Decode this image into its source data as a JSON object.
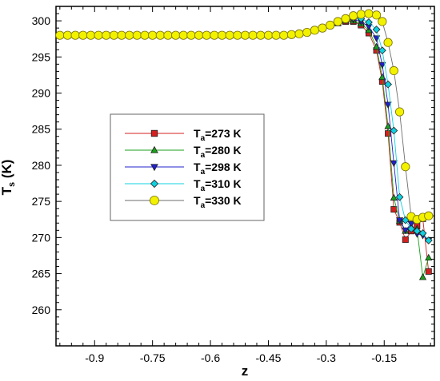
{
  "chart_data": {
    "type": "line",
    "xlabel": "z",
    "ylabel": "T",
    "ylabel_sub": "s",
    "ylabel_unit": "(K)",
    "xlim": [
      -1.0,
      -0.02
    ],
    "ylim": [
      255,
      302
    ],
    "x_ticks": [
      -0.9,
      -0.75,
      -0.6,
      -0.45,
      -0.3,
      -0.15
    ],
    "x_tick_labels": [
      "-0.9",
      "-0.75",
      "-0.6",
      "-0.45",
      "-0.3",
      "-0.15"
    ],
    "y_ticks": [
      260,
      265,
      270,
      275,
      280,
      285,
      290,
      295,
      300
    ],
    "y_tick_labels": [
      "260",
      "265",
      "270",
      "275",
      "280",
      "285",
      "290",
      "295",
      "300"
    ],
    "grid": false,
    "legend_position": "center-left",
    "series": [
      {
        "name_main": "T",
        "name_sub": "a",
        "name_rest": "=273 K",
        "color": "#d42020",
        "marker": "square",
        "x": [
          -0.99,
          -0.97,
          -0.95,
          -0.93,
          -0.91,
          -0.89,
          -0.87,
          -0.85,
          -0.83,
          -0.81,
          -0.79,
          -0.77,
          -0.75,
          -0.73,
          -0.71,
          -0.69,
          -0.67,
          -0.65,
          -0.63,
          -0.61,
          -0.59,
          -0.57,
          -0.55,
          -0.53,
          -0.51,
          -0.49,
          -0.47,
          -0.45,
          -0.43,
          -0.41,
          -0.39,
          -0.37,
          -0.35,
          -0.33,
          -0.31,
          -0.29,
          -0.27,
          -0.25,
          -0.23,
          -0.21,
          -0.19,
          -0.17,
          -0.155,
          -0.14,
          -0.125,
          -0.11,
          -0.095,
          -0.08,
          -0.065,
          -0.05,
          -0.035
        ],
        "y": [
          298,
          298,
          298,
          298,
          298,
          298,
          298,
          298,
          298,
          298,
          298,
          298,
          298,
          298,
          298,
          298,
          298,
          298,
          298,
          298,
          298,
          298,
          298,
          298,
          298,
          298,
          298,
          298,
          298,
          298,
          298.1,
          298.2,
          298.4,
          298.7,
          299.0,
          299.4,
          299.7,
          299.9,
          299.9,
          299.4,
          298.3,
          295.9,
          291.6,
          284.4,
          273.9,
          272.1,
          269.7,
          270.9,
          271.6,
          272.6,
          265.3
        ]
      },
      {
        "name_main": "T",
        "name_sub": "a",
        "name_rest": "=280 K",
        "color": "#1aa01a",
        "marker": "triangle-up",
        "x": [
          -0.99,
          -0.97,
          -0.95,
          -0.93,
          -0.91,
          -0.89,
          -0.87,
          -0.85,
          -0.83,
          -0.81,
          -0.79,
          -0.77,
          -0.75,
          -0.73,
          -0.71,
          -0.69,
          -0.67,
          -0.65,
          -0.63,
          -0.61,
          -0.59,
          -0.57,
          -0.55,
          -0.53,
          -0.51,
          -0.49,
          -0.47,
          -0.45,
          -0.43,
          -0.41,
          -0.39,
          -0.37,
          -0.35,
          -0.33,
          -0.31,
          -0.29,
          -0.27,
          -0.25,
          -0.23,
          -0.21,
          -0.19,
          -0.17,
          -0.155,
          -0.14,
          -0.125,
          -0.11,
          -0.095,
          -0.08,
          -0.065,
          -0.05,
          -0.035
        ],
        "y": [
          298,
          298,
          298,
          298,
          298,
          298,
          298,
          298,
          298,
          298,
          298,
          298,
          298,
          298,
          298,
          298,
          298,
          298,
          298,
          298,
          298,
          298,
          298,
          298,
          298,
          298,
          298,
          298,
          298,
          298,
          298.1,
          298.2,
          298.4,
          298.7,
          299.0,
          299.4,
          299.7,
          300.0,
          300.0,
          299.6,
          298.7,
          296.4,
          292.2,
          285.4,
          275.5,
          272.3,
          270.9,
          271.4,
          271.2,
          264.5,
          267.2
        ]
      },
      {
        "name_main": "T",
        "name_sub": "a",
        "name_rest": "=298 K",
        "color": "#2020cc",
        "marker": "triangle-down",
        "x": [
          -0.99,
          -0.97,
          -0.95,
          -0.93,
          -0.91,
          -0.89,
          -0.87,
          -0.85,
          -0.83,
          -0.81,
          -0.79,
          -0.77,
          -0.75,
          -0.73,
          -0.71,
          -0.69,
          -0.67,
          -0.65,
          -0.63,
          -0.61,
          -0.59,
          -0.57,
          -0.55,
          -0.53,
          -0.51,
          -0.49,
          -0.47,
          -0.45,
          -0.43,
          -0.41,
          -0.39,
          -0.37,
          -0.35,
          -0.33,
          -0.31,
          -0.29,
          -0.27,
          -0.25,
          -0.23,
          -0.21,
          -0.19,
          -0.17,
          -0.155,
          -0.14,
          -0.125,
          -0.11,
          -0.095,
          -0.08,
          -0.065,
          -0.05,
          -0.035
        ],
        "y": [
          298,
          298,
          298,
          298,
          298,
          298,
          298,
          298,
          298,
          298,
          298,
          298,
          298,
          298,
          298,
          298,
          298,
          298,
          298,
          298,
          298,
          298,
          298,
          298,
          298,
          298,
          298,
          298,
          298,
          298,
          298.1,
          298.2,
          298.4,
          298.7,
          299.0,
          299.4,
          299.8,
          300.1,
          300.2,
          299.9,
          299.2,
          297.6,
          293.9,
          288.4,
          280.3,
          272.4,
          271.0,
          271.9,
          270.5,
          270.3,
          269.6
        ]
      },
      {
        "name_main": "T",
        "name_sub": "a",
        "name_rest": "=310 K",
        "color": "#10d0e0",
        "marker": "diamond",
        "x": [
          -0.99,
          -0.97,
          -0.95,
          -0.93,
          -0.91,
          -0.89,
          -0.87,
          -0.85,
          -0.83,
          -0.81,
          -0.79,
          -0.77,
          -0.75,
          -0.73,
          -0.71,
          -0.69,
          -0.67,
          -0.65,
          -0.63,
          -0.61,
          -0.59,
          -0.57,
          -0.55,
          -0.53,
          -0.51,
          -0.49,
          -0.47,
          -0.45,
          -0.43,
          -0.41,
          -0.39,
          -0.37,
          -0.35,
          -0.33,
          -0.31,
          -0.29,
          -0.27,
          -0.25,
          -0.23,
          -0.21,
          -0.19,
          -0.17,
          -0.155,
          -0.14,
          -0.125,
          -0.11,
          -0.095,
          -0.08,
          -0.065,
          -0.05,
          -0.035
        ],
        "y": [
          298,
          298,
          298,
          298,
          298,
          298,
          298,
          298,
          298,
          298,
          298,
          298,
          298,
          298,
          298,
          298,
          298,
          298,
          298,
          298,
          298,
          298,
          298,
          298,
          298,
          298,
          298,
          298,
          298,
          298,
          298.1,
          298.2,
          298.4,
          298.7,
          299.0,
          299.4,
          299.8,
          300.2,
          300.4,
          300.3,
          299.8,
          298.8,
          295.9,
          291.2,
          284.8,
          275.6,
          272.4,
          271.2,
          270.9,
          270.6,
          269.6
        ]
      },
      {
        "name_main": "T",
        "name_sub": "a",
        "name_rest": "=330 K",
        "color": "#6e6e6e",
        "marker": "circle",
        "fill": "#f2f200",
        "stroke": "#7a7000",
        "x": [
          -0.99,
          -0.97,
          -0.95,
          -0.93,
          -0.91,
          -0.89,
          -0.87,
          -0.85,
          -0.83,
          -0.81,
          -0.79,
          -0.77,
          -0.75,
          -0.73,
          -0.71,
          -0.69,
          -0.67,
          -0.65,
          -0.63,
          -0.61,
          -0.59,
          -0.57,
          -0.55,
          -0.53,
          -0.51,
          -0.49,
          -0.47,
          -0.45,
          -0.43,
          -0.41,
          -0.39,
          -0.37,
          -0.35,
          -0.33,
          -0.31,
          -0.29,
          -0.27,
          -0.25,
          -0.23,
          -0.21,
          -0.19,
          -0.17,
          -0.155,
          -0.14,
          -0.125,
          -0.11,
          -0.095,
          -0.08,
          -0.065,
          -0.05,
          -0.035
        ],
        "y": [
          298,
          298,
          298,
          298,
          298,
          298,
          298,
          298,
          298,
          298,
          298,
          298,
          298,
          298,
          298,
          298,
          298,
          298,
          298,
          298,
          298,
          298,
          298,
          298,
          298,
          298,
          298,
          298,
          298,
          298,
          298.1,
          298.2,
          298.4,
          298.7,
          299.0,
          299.4,
          299.9,
          300.3,
          300.7,
          300.9,
          301.0,
          300.8,
          299.9,
          297.0,
          293.1,
          287.4,
          279.8,
          272.9,
          272.5,
          272.8,
          273.0
        ]
      }
    ]
  }
}
